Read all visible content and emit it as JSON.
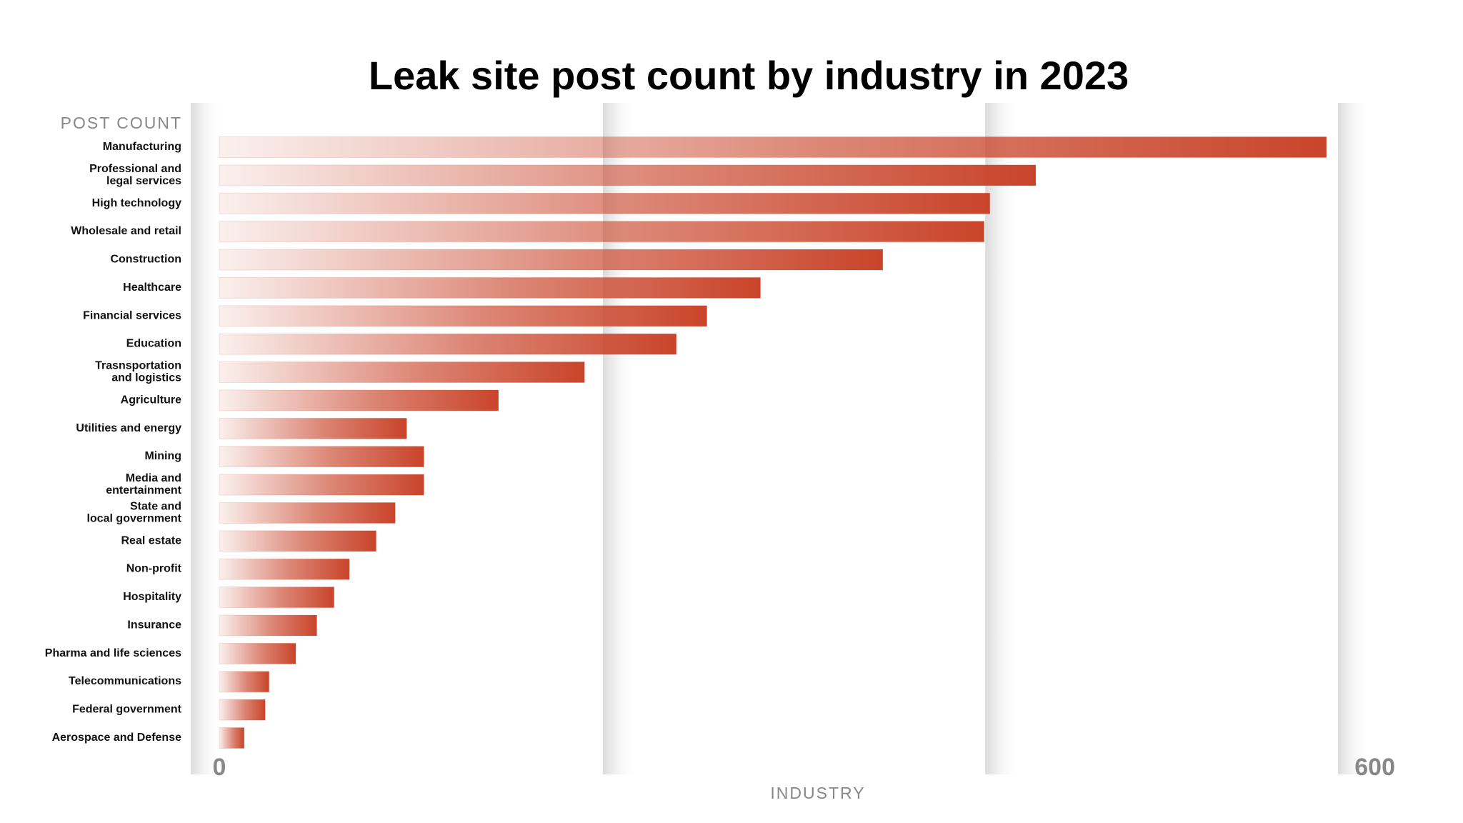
{
  "chart_data": {
    "type": "hbar",
    "title": "Leak site post count by industry in 2023",
    "y_axis_label": "POST COUNT",
    "x_axis_label": "INDUSTRY",
    "categories": [
      "Manufacturing",
      "Professional and\nlegal services",
      "High technology",
      "Wholesale and retail",
      "Construction",
      "Healthcare",
      "Financial services",
      "Education",
      "Trasnsportation\nand logistics",
      "Agriculture",
      "Utilities and energy",
      "Mining",
      "Media and\nentertainment",
      "State and\nlocal government",
      "Real estate",
      "Non-profit",
      "Hospitality",
      "Insurance",
      "Pharma and life sciences",
      "Telecommunications",
      "Federal government",
      "Aerospace and Defense"
    ],
    "values": [
      579,
      427,
      403,
      400,
      347,
      283,
      255,
      239,
      191,
      146,
      98,
      107,
      107,
      92,
      82,
      68,
      60,
      51,
      40,
      26,
      24,
      13
    ],
    "color": "#c9442a",
    "xlim": [
      0,
      600
    ],
    "xticks": [
      0,
      600
    ]
  }
}
